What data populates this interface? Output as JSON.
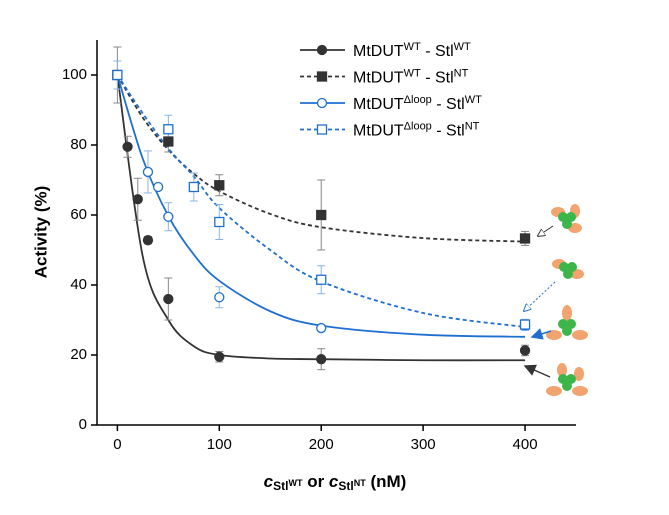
{
  "chart_data": {
    "type": "scatter",
    "y_label": "Activity (%)",
    "x_label": [
      {
        "text": "c",
        "style": "italic"
      },
      {
        "text": "Stl",
        "style": "sub"
      },
      {
        "text": "WT",
        "style": "subsup"
      },
      {
        "text": " or ",
        "style": "normal"
      },
      {
        "text": "c",
        "style": "italic"
      },
      {
        "text": "Stl",
        "style": "sub"
      },
      {
        "text": "NT",
        "style": "subsup"
      },
      {
        "text": " (nM)",
        "style": "normal"
      }
    ],
    "xlim": [
      -20,
      450
    ],
    "ylim": [
      0,
      110
    ],
    "xticks": [
      0,
      100,
      200,
      300,
      400
    ],
    "yticks": [
      0,
      20,
      40,
      60,
      80,
      100
    ],
    "fit_x": [
      0,
      25,
      50,
      75,
      100,
      150,
      200,
      300,
      400
    ],
    "series": [
      {
        "name": [
          "MtDUT",
          "WT",
          " - Stl",
          "WT"
        ],
        "color": "#333333",
        "marker": "circle",
        "filled": true,
        "dashed": false,
        "x": [
          0,
          10,
          20,
          30,
          50,
          100,
          200,
          400
        ],
        "values": [
          100,
          79.5,
          64.5,
          52.8,
          36,
          19.5,
          18.8,
          21.3
        ],
        "errors": [
          null,
          3,
          6,
          1,
          6,
          1.5,
          3,
          1.5
        ],
        "fit_values": [
          100,
          48,
          30,
          22.5,
          20,
          19,
          18.8,
          18.5,
          18.5
        ]
      },
      {
        "name": [
          "MtDUT",
          "WT",
          " - Stl",
          "NT"
        ],
        "color": "#333333",
        "marker": "square",
        "filled": true,
        "dashed": true,
        "x": [
          0,
          50,
          100,
          200,
          400
        ],
        "values": [
          100,
          81,
          68.5,
          60,
          53.3
        ],
        "errors": [
          8,
          3,
          3,
          10,
          2
        ],
        "fit_values": [
          100,
          87.8,
          78.6,
          71.8,
          66.8,
          60.3,
          56.5,
          53.4,
          52.4
        ]
      },
      {
        "name": [
          "MtDUT",
          "Δloop",
          " - Stl",
          "WT"
        ],
        "color": "#1f6fd0",
        "marker": "circle",
        "filled": false,
        "dashed": false,
        "x": [
          0,
          30,
          40,
          50,
          100,
          200,
          400
        ],
        "values": [
          100,
          72.3,
          68,
          59.5,
          36.5,
          27.7,
          28.5
        ],
        "errors": [
          null,
          6,
          null,
          4,
          3,
          null,
          1.5
        ],
        "fit_values": [
          100,
          76,
          59.7,
          48.7,
          41.2,
          32.5,
          28.4,
          25.8,
          25.2
        ]
      },
      {
        "name": [
          "MtDUT",
          "Δloop",
          " - Stl",
          "NT"
        ],
        "color": "#1f6fd0",
        "marker": "square",
        "filled": false,
        "dashed": true,
        "x": [
          0,
          50,
          75,
          100,
          200,
          400
        ],
        "values": [
          100,
          84.5,
          68,
          58,
          41.5,
          28.7
        ],
        "errors": [
          4,
          4,
          4,
          5,
          4,
          1.5
        ],
        "fit_values": [
          100,
          89,
          79,
          71,
          62,
          50,
          41,
          32,
          28
        ]
      }
    ]
  }
}
